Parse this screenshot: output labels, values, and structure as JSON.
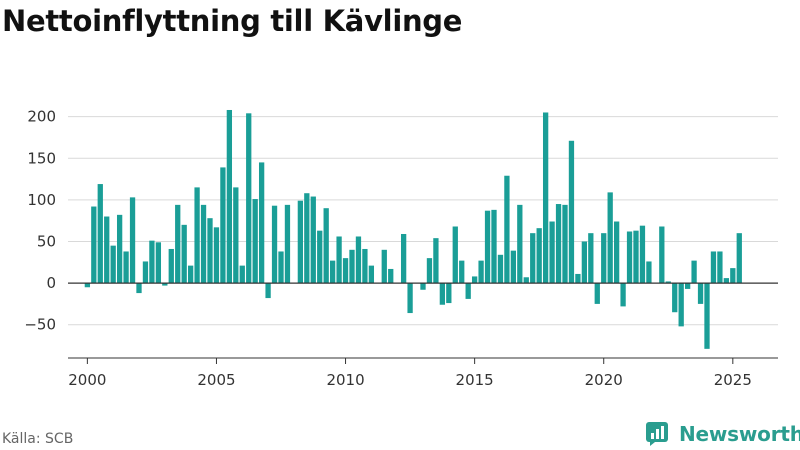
{
  "title": "Nettoinflyttning till Kävlinge",
  "source": "Källa: SCB",
  "brand": {
    "name": "Newsworthy",
    "icon": "newsworthy-logo-icon",
    "color": "#2a9d8f"
  },
  "colors": {
    "bar": "#1a9e97",
    "grid": "#d9d9d9",
    "baseline": "#333333",
    "axis": "#333333"
  },
  "chart_data": {
    "type": "bar",
    "title": "Nettoinflyttning till Kävlinge",
    "xlabel": "",
    "ylabel": "",
    "x_is_date": true,
    "xlim": [
      1999.25,
      2026.75
    ],
    "ylim": [
      -90,
      220
    ],
    "y_ticks": [
      -50,
      0,
      50,
      100,
      150,
      200
    ],
    "x_ticks": [
      2000,
      2005,
      2010,
      2015,
      2020,
      2025
    ],
    "grid": true,
    "legend": "none",
    "x": [
      2000.0,
      2000.25,
      2000.5,
      2000.75,
      2001.0,
      2001.25,
      2001.5,
      2001.75,
      2002.0,
      2002.25,
      2002.5,
      2002.75,
      2003.0,
      2003.25,
      2003.5,
      2003.75,
      2004.0,
      2004.25,
      2004.5,
      2004.75,
      2005.0,
      2005.25,
      2005.5,
      2005.75,
      2006.0,
      2006.25,
      2006.5,
      2006.75,
      2007.0,
      2007.25,
      2007.5,
      2007.75,
      2008.0,
      2008.25,
      2008.5,
      2008.75,
      2009.0,
      2009.25,
      2009.5,
      2009.75,
      2010.0,
      2010.25,
      2010.5,
      2010.75,
      2011.0,
      2011.25,
      2011.5,
      2011.75,
      2012.0,
      2012.25,
      2012.5,
      2012.75,
      2013.0,
      2013.25,
      2013.5,
      2013.75,
      2014.0,
      2014.25,
      2014.5,
      2014.75,
      2015.0,
      2015.25,
      2015.5,
      2015.75,
      2016.0,
      2016.25,
      2016.5,
      2016.75,
      2017.0,
      2017.25,
      2017.5,
      2017.75,
      2018.0,
      2018.25,
      2018.5,
      2018.75,
      2019.0,
      2019.25,
      2019.5,
      2019.75,
      2020.0,
      2020.25,
      2020.5,
      2020.75,
      2021.0,
      2021.25,
      2021.5,
      2021.75,
      2022.0,
      2022.25,
      2022.5,
      2022.75,
      2023.0,
      2023.25,
      2023.5,
      2023.75,
      2024.0,
      2024.25,
      2024.5,
      2024.75,
      2025.0,
      2025.25
    ],
    "values": [
      -5,
      92,
      119,
      80,
      45,
      82,
      38,
      103,
      -12,
      26,
      51,
      49,
      -3,
      41,
      94,
      70,
      21,
      115,
      94,
      78,
      67,
      139,
      208,
      115,
      21,
      204,
      101,
      145,
      -18,
      93,
      38,
      94,
      0,
      99,
      108,
      104,
      63,
      90,
      27,
      56,
      30,
      40,
      56,
      41,
      21,
      0,
      40,
      17,
      0,
      59,
      -36,
      0,
      -8,
      30,
      54,
      -26,
      -24,
      68,
      27,
      -19,
      8,
      27,
      87,
      88,
      34,
      129,
      39,
      94,
      7,
      60,
      66,
      205,
      74,
      95,
      94,
      171,
      11,
      50,
      60,
      -25,
      60,
      109,
      74,
      -28,
      62,
      63,
      69,
      26,
      0,
      68,
      2,
      -35,
      -52,
      -7,
      27,
      -25,
      -79,
      38,
      38,
      6,
      18,
      60
    ]
  }
}
